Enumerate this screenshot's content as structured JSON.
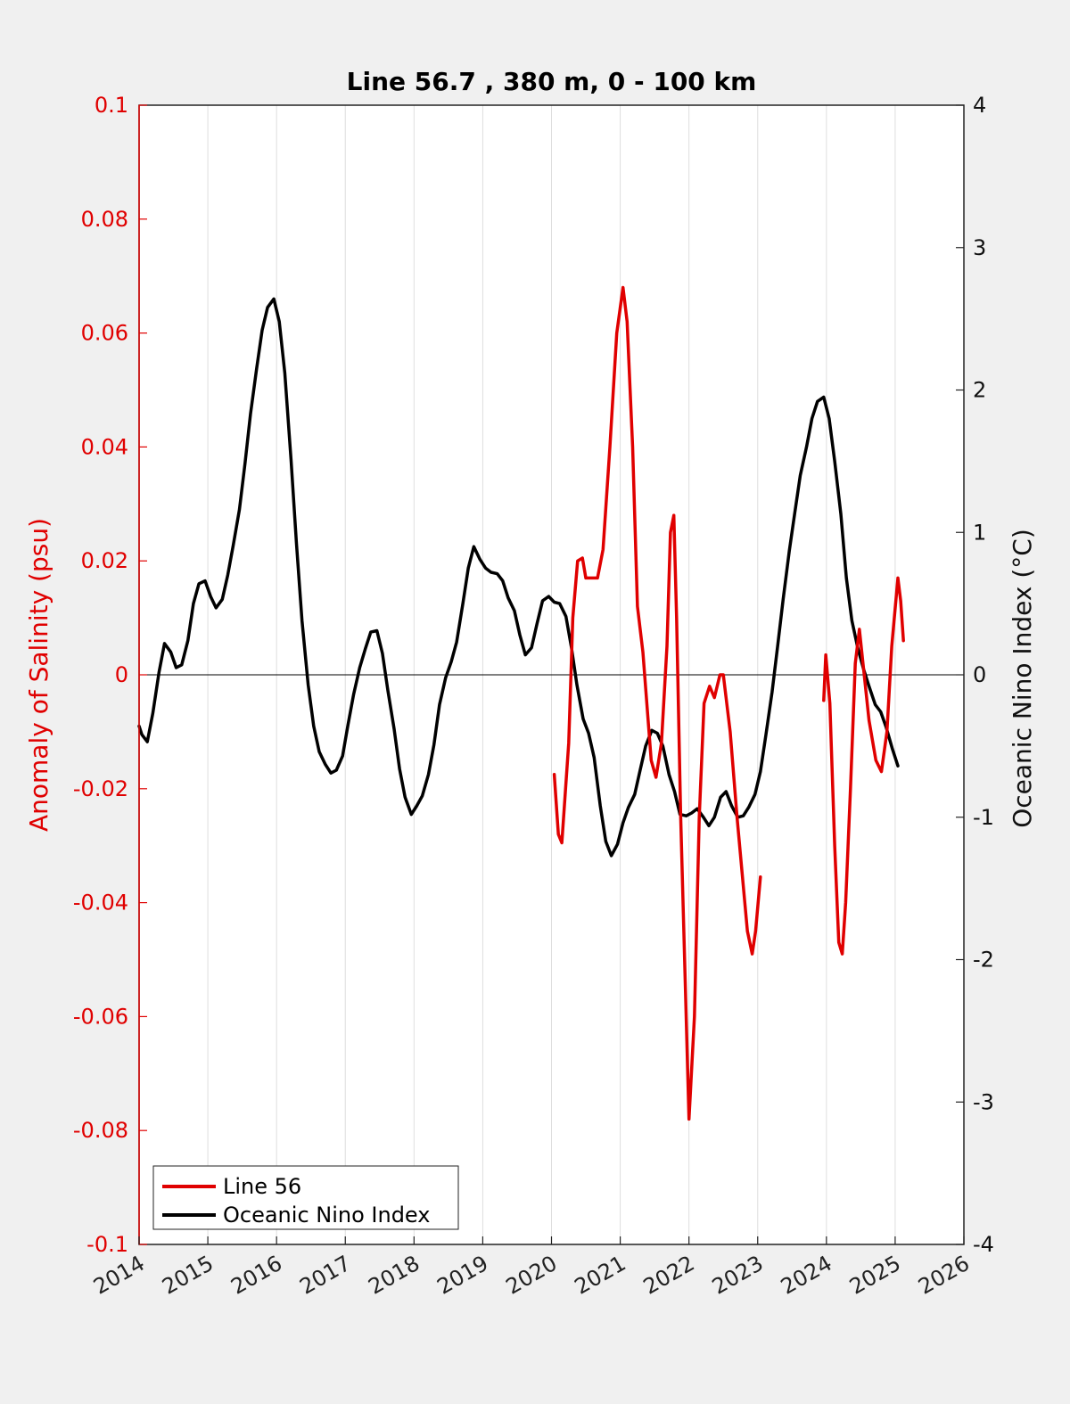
{
  "chart_data": {
    "type": "line",
    "title": "Line 56.7 , 380 m, 0 - 100 km",
    "ylabel_left": "Anomaly of Salinity (psu)",
    "ylabel_right": "Oceanic Nino Index (°C)",
    "xlim": [
      2014,
      2026
    ],
    "ylim_left": [
      -0.1,
      0.1
    ],
    "ylim_right": [
      -4,
      4
    ],
    "x_ticks": [
      "2014",
      "2015",
      "2016",
      "2017",
      "2018",
      "2019",
      "2020",
      "2021",
      "2022",
      "2023",
      "2024",
      "2025",
      "2026"
    ],
    "y_left_ticks": [
      "0.1",
      "0.08",
      "0.06",
      "0.04",
      "0.02",
      "0",
      "-0.02",
      "-0.04",
      "-0.06",
      "-0.08",
      "-0.1"
    ],
    "y_right_ticks": [
      "4",
      "3",
      "2",
      "1",
      "0",
      "-1",
      "-2",
      "-3",
      "-4"
    ],
    "grid": "vertical",
    "legend_position": "bottom-left",
    "colors": {
      "line56": "#e00000",
      "oni": "#000000",
      "left_axis": "#e00000",
      "right_axis": "#111111"
    },
    "series": [
      {
        "name": "Line 56",
        "axis": "left",
        "segments": [
          [
            [
              2020.04,
              -0.0175
            ],
            [
              2020.1,
              -0.028
            ],
            [
              2020.15,
              -0.0295
            ],
            [
              2020.25,
              -0.012
            ],
            [
              2020.31,
              0.01
            ],
            [
              2020.38,
              0.02
            ],
            [
              2020.45,
              0.0205
            ],
            [
              2020.5,
              0.017
            ],
            [
              2020.6,
              0.017
            ],
            [
              2020.67,
              0.017
            ],
            [
              2020.75,
              0.022
            ],
            [
              2020.85,
              0.04
            ],
            [
              2020.95,
              0.06
            ],
            [
              2021.04,
              0.068
            ],
            [
              2021.1,
              0.062
            ],
            [
              2021.18,
              0.04
            ],
            [
              2021.25,
              0.012
            ],
            [
              2021.33,
              0.004
            ],
            [
              2021.45,
              -0.015
            ],
            [
              2021.52,
              -0.018
            ],
            [
              2021.6,
              -0.012
            ],
            [
              2021.68,
              0.005
            ],
            [
              2021.73,
              0.025
            ],
            [
              2021.78,
              0.028
            ],
            [
              2021.82,
              0.01
            ],
            [
              2021.88,
              -0.025
            ],
            [
              2022.0,
              -0.078
            ],
            [
              2022.08,
              -0.06
            ],
            [
              2022.15,
              -0.025
            ],
            [
              2022.22,
              -0.005
            ],
            [
              2022.3,
              -0.002
            ],
            [
              2022.37,
              -0.004
            ],
            [
              2022.45,
              0.0
            ],
            [
              2022.5,
              0.0
            ],
            [
              2022.6,
              -0.01
            ],
            [
              2022.7,
              -0.025
            ],
            [
              2022.85,
              -0.045
            ],
            [
              2022.92,
              -0.049
            ],
            [
              2022.97,
              -0.045
            ],
            [
              2023.04,
              -0.0355
            ]
          ],
          [
            [
              2023.96,
              -0.0045
            ],
            [
              2023.99,
              0.0035
            ],
            [
              2024.05,
              -0.005
            ],
            [
              2024.12,
              -0.03
            ],
            [
              2024.18,
              -0.047
            ],
            [
              2024.23,
              -0.049
            ],
            [
              2024.28,
              -0.04
            ],
            [
              2024.35,
              -0.02
            ],
            [
              2024.42,
              0.002
            ],
            [
              2024.48,
              0.008
            ],
            [
              2024.55,
              0.0
            ],
            [
              2024.62,
              -0.008
            ],
            [
              2024.72,
              -0.015
            ],
            [
              2024.8,
              -0.017
            ],
            [
              2024.88,
              -0.01
            ],
            [
              2024.95,
              0.005
            ],
            [
              2025.04,
              0.017
            ],
            [
              2025.08,
              0.013
            ],
            [
              2025.12,
              0.006
            ]
          ]
        ]
      },
      {
        "name": "Oceanic Nino Index",
        "axis": "right",
        "segments": [
          [
            [
              2014.0,
              -0.36
            ],
            [
              2014.04,
              -0.42
            ],
            [
              2014.12,
              -0.47
            ],
            [
              2014.2,
              -0.27
            ],
            [
              2014.29,
              0.02
            ],
            [
              2014.37,
              0.22
            ],
            [
              2014.46,
              0.16
            ],
            [
              2014.54,
              0.05
            ],
            [
              2014.62,
              0.07
            ],
            [
              2014.71,
              0.24
            ],
            [
              2014.79,
              0.5
            ],
            [
              2014.87,
              0.64
            ],
            [
              2014.96,
              0.66
            ],
            [
              2015.04,
              0.55
            ],
            [
              2015.12,
              0.47
            ],
            [
              2015.21,
              0.53
            ],
            [
              2015.29,
              0.7
            ],
            [
              2015.37,
              0.91
            ],
            [
              2015.46,
              1.16
            ],
            [
              2015.54,
              1.48
            ],
            [
              2015.62,
              1.83
            ],
            [
              2015.71,
              2.15
            ],
            [
              2015.79,
              2.42
            ],
            [
              2015.87,
              2.58
            ],
            [
              2015.96,
              2.64
            ],
            [
              2016.04,
              2.48
            ],
            [
              2016.12,
              2.12
            ],
            [
              2016.21,
              1.51
            ],
            [
              2016.29,
              0.92
            ],
            [
              2016.37,
              0.38
            ],
            [
              2016.46,
              -0.07
            ],
            [
              2016.54,
              -0.36
            ],
            [
              2016.62,
              -0.54
            ],
            [
              2016.71,
              -0.63
            ],
            [
              2016.79,
              -0.69
            ],
            [
              2016.87,
              -0.67
            ],
            [
              2016.96,
              -0.57
            ],
            [
              2017.04,
              -0.35
            ],
            [
              2017.12,
              -0.14
            ],
            [
              2017.21,
              0.05
            ],
            [
              2017.29,
              0.18
            ],
            [
              2017.37,
              0.3
            ],
            [
              2017.46,
              0.31
            ],
            [
              2017.54,
              0.15
            ],
            [
              2017.62,
              -0.11
            ],
            [
              2017.71,
              -0.38
            ],
            [
              2017.79,
              -0.66
            ],
            [
              2017.87,
              -0.86
            ],
            [
              2017.96,
              -0.98
            ],
            [
              2018.04,
              -0.92
            ],
            [
              2018.12,
              -0.85
            ],
            [
              2018.21,
              -0.7
            ],
            [
              2018.29,
              -0.49
            ],
            [
              2018.37,
              -0.21
            ],
            [
              2018.46,
              -0.02
            ],
            [
              2018.54,
              0.09
            ],
            [
              2018.62,
              0.23
            ],
            [
              2018.71,
              0.5
            ],
            [
              2018.79,
              0.75
            ],
            [
              2018.87,
              0.9
            ],
            [
              2018.96,
              0.81
            ],
            [
              2019.04,
              0.75
            ],
            [
              2019.12,
              0.72
            ],
            [
              2019.21,
              0.71
            ],
            [
              2019.29,
              0.66
            ],
            [
              2019.37,
              0.54
            ],
            [
              2019.46,
              0.45
            ],
            [
              2019.54,
              0.28
            ],
            [
              2019.62,
              0.14
            ],
            [
              2019.71,
              0.19
            ],
            [
              2019.79,
              0.36
            ],
            [
              2019.87,
              0.52
            ],
            [
              2019.96,
              0.55
            ],
            [
              2020.04,
              0.51
            ],
            [
              2020.12,
              0.5
            ],
            [
              2020.21,
              0.41
            ],
            [
              2020.29,
              0.19
            ],
            [
              2020.37,
              -0.07
            ],
            [
              2020.46,
              -0.31
            ],
            [
              2020.54,
              -0.41
            ],
            [
              2020.62,
              -0.58
            ],
            [
              2020.71,
              -0.92
            ],
            [
              2020.79,
              -1.17
            ],
            [
              2020.87,
              -1.27
            ],
            [
              2020.96,
              -1.19
            ],
            [
              2021.04,
              -1.04
            ],
            [
              2021.12,
              -0.93
            ],
            [
              2021.21,
              -0.84
            ],
            [
              2021.29,
              -0.67
            ],
            [
              2021.37,
              -0.5
            ],
            [
              2021.46,
              -0.39
            ],
            [
              2021.54,
              -0.41
            ],
            [
              2021.62,
              -0.5
            ],
            [
              2021.71,
              -0.7
            ],
            [
              2021.79,
              -0.82
            ],
            [
              2021.87,
              -0.98
            ],
            [
              2021.96,
              -0.99
            ],
            [
              2022.04,
              -0.97
            ],
            [
              2022.12,
              -0.94
            ],
            [
              2022.21,
              -1.0
            ],
            [
              2022.29,
              -1.06
            ],
            [
              2022.37,
              -1.0
            ],
            [
              2022.46,
              -0.86
            ],
            [
              2022.54,
              -0.82
            ],
            [
              2022.62,
              -0.92
            ],
            [
              2022.71,
              -1.0
            ],
            [
              2022.79,
              -0.99
            ],
            [
              2022.87,
              -0.93
            ],
            [
              2022.96,
              -0.84
            ],
            [
              2023.04,
              -0.68
            ],
            [
              2023.12,
              -0.42
            ],
            [
              2023.21,
              -0.12
            ],
            [
              2023.29,
              0.2
            ],
            [
              2023.37,
              0.53
            ],
            [
              2023.46,
              0.87
            ],
            [
              2023.54,
              1.14
            ],
            [
              2023.62,
              1.4
            ],
            [
              2023.71,
              1.6
            ],
            [
              2023.79,
              1.8
            ],
            [
              2023.87,
              1.92
            ],
            [
              2023.96,
              1.95
            ],
            [
              2024.04,
              1.8
            ],
            [
              2024.12,
              1.5
            ],
            [
              2024.21,
              1.13
            ],
            [
              2024.29,
              0.68
            ],
            [
              2024.37,
              0.38
            ],
            [
              2024.46,
              0.18
            ],
            [
              2024.54,
              0.04
            ],
            [
              2024.62,
              -0.08
            ],
            [
              2024.71,
              -0.21
            ],
            [
              2024.79,
              -0.26
            ],
            [
              2024.87,
              -0.37
            ],
            [
              2024.96,
              -0.52
            ],
            [
              2025.04,
              -0.64
            ]
          ]
        ]
      }
    ]
  }
}
